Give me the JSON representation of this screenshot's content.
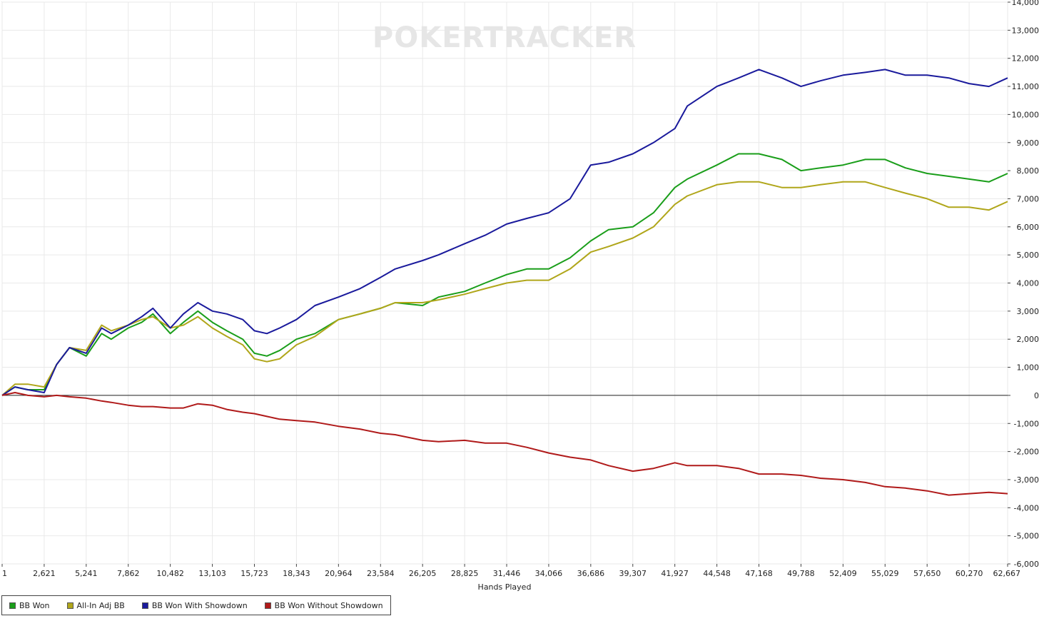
{
  "watermark": "POKERTRACKER",
  "chart_data": {
    "type": "line",
    "xlabel": "Hands Played",
    "ylabel": "",
    "xlim": [
      1,
      62667
    ],
    "ylim": [
      -6000,
      14000
    ],
    "x_ticks": [
      "1",
      "2,621",
      "5,241",
      "7,862",
      "10,482",
      "13,103",
      "15,723",
      "18,343",
      "20,964",
      "23,584",
      "26,205",
      "28,825",
      "31,446",
      "34,066",
      "36,686",
      "39,307",
      "41,927",
      "44,548",
      "47,168",
      "49,788",
      "52,409",
      "55,029",
      "57,650",
      "60,270",
      "62,667"
    ],
    "y_ticks": [
      "14,000",
      "13,000",
      "12,000",
      "11,000",
      "10,000",
      "9,000",
      "8,000",
      "7,000",
      "6,000",
      "5,000",
      "4,000",
      "3,000",
      "2,000",
      "1,000",
      "0",
      "-1,000",
      "-2,000",
      "-3,000",
      "-4,000",
      "-5,000",
      "-6,000"
    ],
    "grid": true,
    "legend_position": "bottom-left",
    "series": [
      {
        "name": "BB Won",
        "color": "#1a9e1a",
        "x": [
          1,
          800,
          1600,
          2621,
          3400,
          4200,
          5241,
          6200,
          6800,
          7862,
          8700,
          9400,
          10482,
          11300,
          12200,
          13103,
          14000,
          15000,
          15723,
          16500,
          17300,
          18343,
          19500,
          20964,
          22300,
          23584,
          24500,
          26205,
          27200,
          28825,
          30100,
          31446,
          32700,
          34066,
          35400,
          36686,
          37800,
          39307,
          40600,
          41927,
          42700,
          44548,
          45900,
          47168,
          48600,
          49788,
          51000,
          52409,
          53800,
          55029,
          56300,
          57650,
          59000,
          60270,
          61500,
          62667
        ],
        "y": [
          0,
          300,
          200,
          200,
          1100,
          1700,
          1400,
          2200,
          2000,
          2400,
          2600,
          2900,
          2200,
          2600,
          3000,
          2600,
          2300,
          2000,
          1500,
          1400,
          1600,
          2000,
          2200,
          2700,
          2900,
          3100,
          3300,
          3200,
          3500,
          3700,
          4000,
          4300,
          4500,
          4500,
          4900,
          5500,
          5900,
          6000,
          6500,
          7400,
          7700,
          8200,
          8600,
          8600,
          8400,
          8000,
          8100,
          8200,
          8400,
          8400,
          8100,
          7900,
          7800,
          7700,
          7600,
          7900
        ]
      },
      {
        "name": "All-In Adj BB",
        "color": "#b0a61a",
        "x": [
          1,
          800,
          1600,
          2621,
          3400,
          4200,
          5241,
          6200,
          6800,
          7862,
          8700,
          9400,
          10482,
          11300,
          12200,
          13103,
          14000,
          15000,
          15723,
          16500,
          17300,
          18343,
          19500,
          20964,
          22300,
          23584,
          24500,
          26205,
          27200,
          28825,
          30100,
          31446,
          32700,
          34066,
          35400,
          36686,
          37800,
          39307,
          40600,
          41927,
          42700,
          44548,
          45900,
          47168,
          48600,
          49788,
          51000,
          52409,
          53800,
          55029,
          56300,
          57650,
          59000,
          60270,
          61500,
          62667
        ],
        "y": [
          0,
          400,
          400,
          300,
          1100,
          1700,
          1600,
          2500,
          2300,
          2500,
          2700,
          2800,
          2400,
          2500,
          2800,
          2400,
          2100,
          1800,
          1300,
          1200,
          1300,
          1800,
          2100,
          2700,
          2900,
          3100,
          3300,
          3300,
          3400,
          3600,
          3800,
          4000,
          4100,
          4100,
          4500,
          5100,
          5300,
          5600,
          6000,
          6800,
          7100,
          7500,
          7600,
          7600,
          7400,
          7400,
          7500,
          7600,
          7600,
          7400,
          7200,
          7000,
          6700,
          6700,
          6600,
          6900
        ]
      },
      {
        "name": "BB Won With Showdown",
        "color": "#1a1a9c",
        "x": [
          1,
          800,
          1600,
          2621,
          3400,
          4200,
          5241,
          6200,
          6800,
          7862,
          8700,
          9400,
          10482,
          11300,
          12200,
          13103,
          14000,
          15000,
          15723,
          16500,
          17300,
          18343,
          19500,
          20964,
          22300,
          23584,
          24500,
          26205,
          27200,
          28825,
          30100,
          31446,
          32700,
          34066,
          35400,
          36686,
          37800,
          39307,
          40600,
          41927,
          42700,
          44548,
          45900,
          47168,
          48600,
          49788,
          51000,
          52409,
          53800,
          55029,
          56300,
          57650,
          59000,
          60270,
          61500,
          62667
        ],
        "y": [
          0,
          300,
          200,
          100,
          1100,
          1700,
          1500,
          2400,
          2200,
          2500,
          2800,
          3100,
          2400,
          2900,
          3300,
          3000,
          2900,
          2700,
          2300,
          2200,
          2400,
          2700,
          3200,
          3500,
          3800,
          4200,
          4500,
          4800,
          5000,
          5400,
          5700,
          6100,
          6300,
          6500,
          7000,
          8200,
          8300,
          8600,
          9000,
          9500,
          10300,
          11000,
          11300,
          11600,
          11300,
          11000,
          11200,
          11400,
          11500,
          11600,
          11400,
          11400,
          11300,
          11100,
          11000,
          11300
        ]
      },
      {
        "name": "BB Won Without Showdown",
        "color": "#b01a1a",
        "x": [
          1,
          800,
          1600,
          2621,
          3400,
          4200,
          5241,
          6200,
          6800,
          7862,
          8700,
          9400,
          10482,
          11300,
          12200,
          13103,
          14000,
          15000,
          15723,
          16500,
          17300,
          18343,
          19500,
          20964,
          22300,
          23584,
          24500,
          26205,
          27200,
          28825,
          30100,
          31446,
          32700,
          34066,
          35400,
          36686,
          37800,
          39307,
          40600,
          41927,
          42700,
          44548,
          45900,
          47168,
          48600,
          49788,
          51000,
          52409,
          53800,
          55029,
          56300,
          57650,
          59000,
          60270,
          61500,
          62667
        ],
        "y": [
          0,
          100,
          0,
          -50,
          0,
          -50,
          -100,
          -200,
          -250,
          -350,
          -400,
          -400,
          -450,
          -450,
          -300,
          -350,
          -500,
          -600,
          -650,
          -750,
          -850,
          -900,
          -950,
          -1100,
          -1200,
          -1350,
          -1400,
          -1600,
          -1650,
          -1600,
          -1700,
          -1700,
          -1850,
          -2050,
          -2200,
          -2300,
          -2500,
          -2700,
          -2600,
          -2400,
          -2500,
          -2500,
          -2600,
          -2800,
          -2800,
          -2850,
          -2950,
          -3000,
          -3100,
          -3250,
          -3300,
          -3400,
          -3550,
          -3500,
          -3450,
          -3500
        ]
      }
    ]
  }
}
